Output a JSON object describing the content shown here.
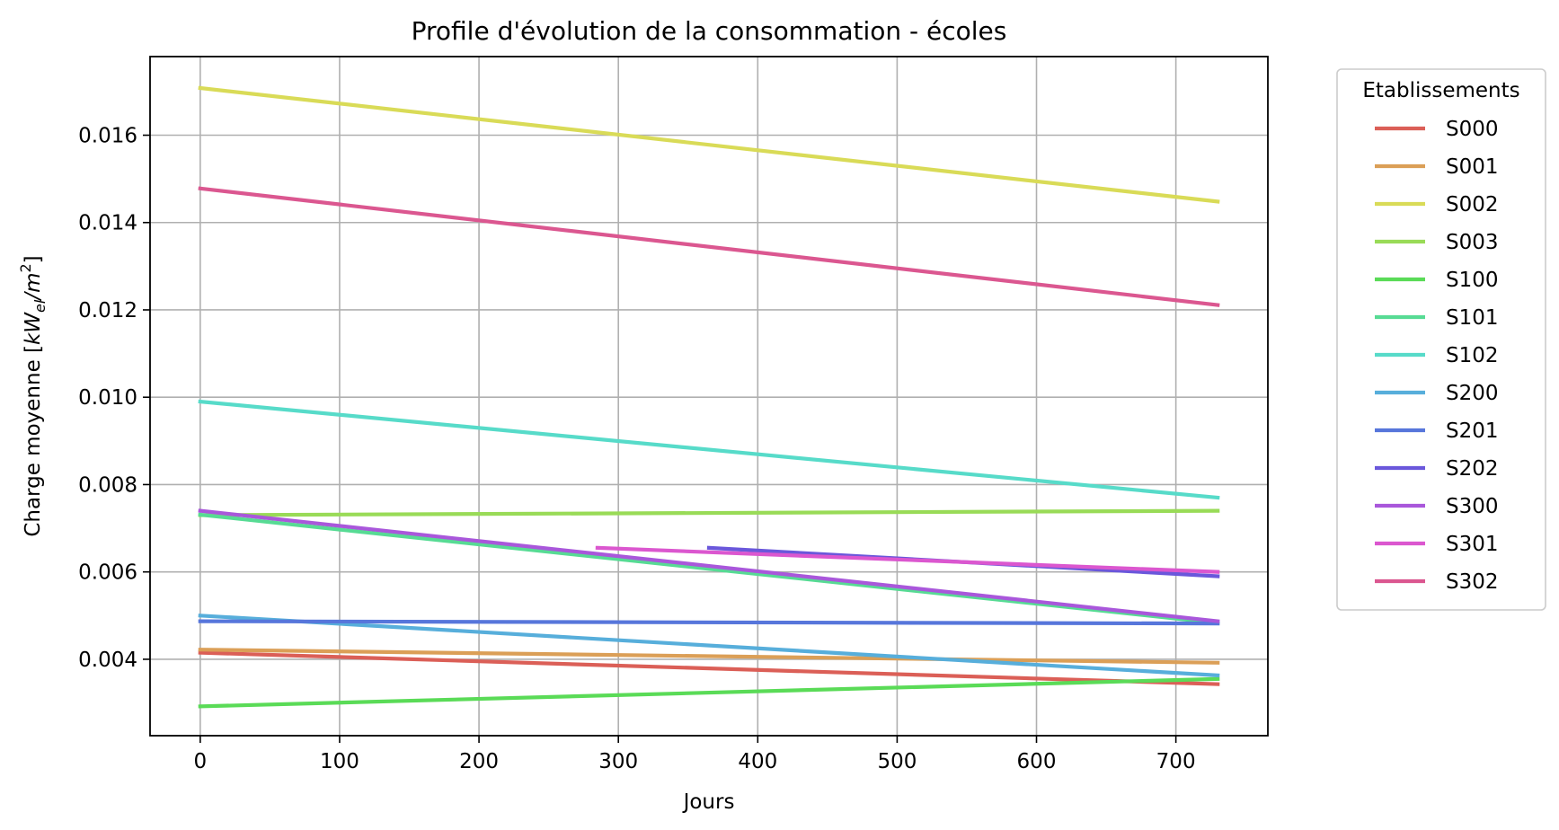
{
  "chart_data": {
    "type": "line",
    "title": "Profile d'évolution de la consommation - écoles",
    "xlabel": "Jours",
    "ylabel_prefix": "Charge moyenne [",
    "ylabel_sym": "kW",
    "ylabel_sub": "el",
    "ylabel_mid": "/",
    "ylabel_unit": "m",
    "ylabel_sup": "2",
    "ylabel_suffix": "]",
    "xlim": [
      -36,
      766
    ],
    "ylim": [
      0.00225,
      0.0178
    ],
    "xticks": [
      0,
      100,
      200,
      300,
      400,
      500,
      600,
      700
    ],
    "yticks": [
      0.004,
      0.006,
      0.008,
      0.01,
      0.012,
      0.014,
      0.016
    ],
    "ytick_labels": [
      "0.004",
      "0.006",
      "0.008",
      "0.010",
      "0.012",
      "0.014",
      "0.016"
    ],
    "grid": true,
    "legend_title": "Etablissements",
    "legend_placement": "outside-right-top",
    "series": [
      {
        "name": "S000",
        "color": "#db5f57",
        "x": [
          0,
          730
        ],
        "y": [
          0.00415,
          0.00343
        ]
      },
      {
        "name": "S001",
        "color": "#db9f57",
        "x": [
          0,
          730
        ],
        "y": [
          0.00422,
          0.00392
        ]
      },
      {
        "name": "S002",
        "color": "#d9db57",
        "x": [
          0,
          730
        ],
        "y": [
          0.01708,
          0.01448
        ]
      },
      {
        "name": "S003",
        "color": "#99db57",
        "x": [
          0,
          730
        ],
        "y": [
          0.0073,
          0.0074
        ]
      },
      {
        "name": "S100",
        "color": "#5adb57",
        "x": [
          0,
          730
        ],
        "y": [
          0.00292,
          0.00355
        ]
      },
      {
        "name": "S101",
        "color": "#57db94",
        "x": [
          0,
          730
        ],
        "y": [
          0.00731,
          0.00483
        ]
      },
      {
        "name": "S102",
        "color": "#57dbc9",
        "x": [
          0,
          730
        ],
        "y": [
          0.0099,
          0.0077
        ]
      },
      {
        "name": "S200",
        "color": "#57aedb",
        "x": [
          0,
          730
        ],
        "y": [
          0.005,
          0.00363
        ]
      },
      {
        "name": "S201",
        "color": "#5776db",
        "x": [
          0,
          730
        ],
        "y": [
          0.00487,
          0.00482
        ]
      },
      {
        "name": "S202",
        "color": "#6a57db",
        "x": [
          365,
          730
        ],
        "y": [
          0.00655,
          0.0059
        ]
      },
      {
        "name": "S300",
        "color": "#a957db",
        "x": [
          0,
          730
        ],
        "y": [
          0.0074,
          0.00487
        ]
      },
      {
        "name": "S301",
        "color": "#db57cf",
        "x": [
          285,
          730
        ],
        "y": [
          0.00655,
          0.006
        ]
      },
      {
        "name": "S302",
        "color": "#db5790",
        "x": [
          0,
          730
        ],
        "y": [
          0.01478,
          0.01211
        ]
      }
    ]
  }
}
